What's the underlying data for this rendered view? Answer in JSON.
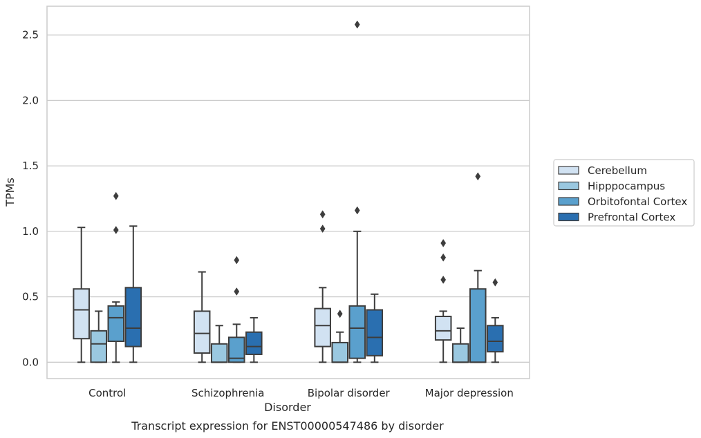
{
  "caption": "Transcript expression for ENST00000547486 by disorder",
  "chart_data": {
    "type": "box",
    "title": "",
    "xlabel": "Disorder",
    "ylabel": "TPMs",
    "ylim": [
      -0.125,
      2.72
    ],
    "yticks": [
      0.0,
      0.5,
      1.0,
      1.5,
      2.0,
      2.5
    ],
    "ytick_labels": [
      "0.0",
      "0.5",
      "1.0",
      "1.5",
      "2.0",
      "2.5"
    ],
    "grid": "horizontal",
    "legend_position": "right",
    "categories": [
      "Control",
      "Schizophrenia",
      "Bipolar disorder",
      "Major depression"
    ],
    "series": [
      {
        "name": "Cerebellum",
        "color": "#d1e2f2",
        "boxes": [
          {
            "whislo": 0.0,
            "q1": 0.18,
            "med": 0.4,
            "q3": 0.56,
            "whishi": 1.03,
            "fliers": []
          },
          {
            "whislo": 0.0,
            "q1": 0.07,
            "med": 0.22,
            "q3": 0.39,
            "whishi": 0.69,
            "fliers": []
          },
          {
            "whislo": 0.0,
            "q1": 0.12,
            "med": 0.28,
            "q3": 0.41,
            "whishi": 0.57,
            "fliers": [
              1.02,
              1.13
            ]
          },
          {
            "whislo": 0.0,
            "q1": 0.17,
            "med": 0.24,
            "q3": 0.35,
            "whishi": 0.39,
            "fliers": [
              0.63,
              0.8,
              0.91
            ]
          }
        ]
      },
      {
        "name": "Hipppocampus",
        "color": "#9ac8e0",
        "boxes": [
          {
            "whislo": 0.0,
            "q1": 0.0,
            "med": 0.14,
            "q3": 0.24,
            "whishi": 0.39,
            "fliers": []
          },
          {
            "whislo": 0.0,
            "q1": 0.0,
            "med": 0.0,
            "q3": 0.14,
            "whishi": 0.28,
            "fliers": []
          },
          {
            "whislo": 0.0,
            "q1": 0.0,
            "med": 0.0,
            "q3": 0.15,
            "whishi": 0.23,
            "fliers": [
              0.37
            ]
          },
          {
            "whislo": 0.0,
            "q1": 0.0,
            "med": 0.0,
            "q3": 0.14,
            "whishi": 0.26,
            "fliers": []
          }
        ]
      },
      {
        "name": "Orbitofontal Cortex",
        "color": "#5aa0cd",
        "boxes": [
          {
            "whislo": 0.0,
            "q1": 0.16,
            "med": 0.34,
            "q3": 0.43,
            "whishi": 0.46,
            "fliers": [
              1.01,
              1.27
            ]
          },
          {
            "whislo": 0.0,
            "q1": 0.0,
            "med": 0.03,
            "q3": 0.19,
            "whishi": 0.29,
            "fliers": [
              0.54,
              0.78
            ]
          },
          {
            "whislo": 0.0,
            "q1": 0.03,
            "med": 0.26,
            "q3": 0.43,
            "whishi": 1.0,
            "fliers": [
              1.16,
              2.58
            ]
          },
          {
            "whislo": 0.0,
            "q1": 0.0,
            "med": 0.0,
            "q3": 0.56,
            "whishi": 0.7,
            "fliers": [
              1.42
            ]
          }
        ]
      },
      {
        "name": "Prefrontal Cortex",
        "color": "#2a6fb0",
        "boxes": [
          {
            "whislo": 0.0,
            "q1": 0.12,
            "med": 0.26,
            "q3": 0.57,
            "whishi": 1.04,
            "fliers": []
          },
          {
            "whislo": 0.0,
            "q1": 0.06,
            "med": 0.12,
            "q3": 0.23,
            "whishi": 0.34,
            "fliers": []
          },
          {
            "whislo": 0.0,
            "q1": 0.05,
            "med": 0.19,
            "q3": 0.4,
            "whishi": 0.52,
            "fliers": []
          },
          {
            "whislo": 0.0,
            "q1": 0.08,
            "med": 0.16,
            "q3": 0.28,
            "whishi": 0.34,
            "fliers": [
              0.61
            ]
          }
        ]
      }
    ]
  }
}
